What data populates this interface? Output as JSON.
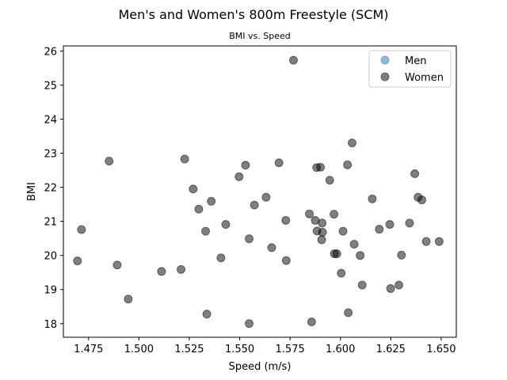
{
  "chart_data": {
    "type": "scatter",
    "title": "Men's and Women's 800m Freestyle (SCM)",
    "subtitle": "BMI vs. Speed",
    "xlabel": "Speed (m/s)",
    "ylabel": "BMI",
    "xlim": [
      1.4625,
      1.6575
    ],
    "ylim": [
      17.6,
      26.15
    ],
    "x_ticks": [
      "1.475",
      "1.500",
      "1.525",
      "1.550",
      "1.575",
      "1.600",
      "1.625",
      "1.650"
    ],
    "x_tick_values": [
      1.475,
      1.5,
      1.525,
      1.55,
      1.575,
      1.6,
      1.625,
      1.65
    ],
    "y_ticks": [
      "18",
      "19",
      "20",
      "21",
      "22",
      "23",
      "24",
      "25",
      "26"
    ],
    "y_tick_values": [
      18,
      19,
      20,
      21,
      22,
      23,
      24,
      25,
      26
    ],
    "grid": false,
    "legend_position": "top-right",
    "series": [
      {
        "name": "Men",
        "color": "#1f77b4",
        "alpha": 0.5,
        "points": []
      },
      {
        "name": "Women",
        "color": "#000000",
        "alpha": 0.5,
        "points": [
          [
            1.4695,
            19.84
          ],
          [
            1.4715,
            20.76
          ],
          [
            1.4852,
            22.77
          ],
          [
            1.4892,
            19.72
          ],
          [
            1.4947,
            18.72
          ],
          [
            1.5112,
            19.53
          ],
          [
            1.5209,
            19.59
          ],
          [
            1.5227,
            22.83
          ],
          [
            1.5269,
            21.95
          ],
          [
            1.5297,
            21.36
          ],
          [
            1.5331,
            20.71
          ],
          [
            1.5337,
            18.28
          ],
          [
            1.5359,
            21.59
          ],
          [
            1.5407,
            19.93
          ],
          [
            1.5431,
            20.91
          ],
          [
            1.5497,
            22.31
          ],
          [
            1.5529,
            22.65
          ],
          [
            1.5547,
            20.49
          ],
          [
            1.5547,
            18.0
          ],
          [
            1.5573,
            21.48
          ],
          [
            1.5631,
            21.71
          ],
          [
            1.5659,
            20.23
          ],
          [
            1.5695,
            22.72
          ],
          [
            1.5729,
            21.03
          ],
          [
            1.5731,
            19.85
          ],
          [
            1.5767,
            25.73
          ],
          [
            1.5846,
            21.22
          ],
          [
            1.5857,
            18.05
          ],
          [
            1.5875,
            21.03
          ],
          [
            1.5882,
            22.58
          ],
          [
            1.5884,
            20.72
          ],
          [
            1.5901,
            22.59
          ],
          [
            1.5907,
            20.46
          ],
          [
            1.5909,
            20.95
          ],
          [
            1.5911,
            20.68
          ],
          [
            1.5947,
            22.21
          ],
          [
            1.5968,
            21.21
          ],
          [
            1.597,
            20.05
          ],
          [
            1.5982,
            20.05
          ],
          [
            1.6004,
            19.48
          ],
          [
            1.6013,
            20.71
          ],
          [
            1.6035,
            22.66
          ],
          [
            1.6039,
            18.32
          ],
          [
            1.6058,
            23.3
          ],
          [
            1.6068,
            20.33
          ],
          [
            1.6098,
            20.0
          ],
          [
            1.6108,
            19.13
          ],
          [
            1.6158,
            21.66
          ],
          [
            1.6193,
            20.77
          ],
          [
            1.6245,
            20.91
          ],
          [
            1.6249,
            19.03
          ],
          [
            1.629,
            19.13
          ],
          [
            1.6303,
            20.01
          ],
          [
            1.6343,
            20.95
          ],
          [
            1.6369,
            22.4
          ],
          [
            1.6385,
            21.71
          ],
          [
            1.6404,
            21.63
          ],
          [
            1.6426,
            20.41
          ],
          [
            1.649,
            20.41
          ]
        ]
      }
    ]
  }
}
